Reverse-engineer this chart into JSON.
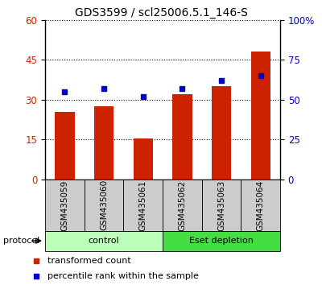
{
  "title": "GDS3599 / scl25006.5.1_146-S",
  "samples": [
    "GSM435059",
    "GSM435060",
    "GSM435061",
    "GSM435062",
    "GSM435063",
    "GSM435064"
  ],
  "red_values": [
    25.5,
    27.5,
    15.5,
    32.0,
    35.0,
    48.0
  ],
  "blue_values": [
    55,
    57,
    52,
    57,
    62,
    65
  ],
  "left_ylim": [
    0,
    60
  ],
  "right_ylim": [
    0,
    100
  ],
  "left_yticks": [
    0,
    15,
    30,
    45,
    60
  ],
  "right_yticks": [
    0,
    25,
    50,
    75,
    100
  ],
  "right_yticklabels": [
    "0",
    "25",
    "50",
    "75",
    "100%"
  ],
  "groups": [
    {
      "label": "control",
      "indices": [
        0,
        1,
        2
      ],
      "color": "#bbffbb"
    },
    {
      "label": "Eset depletion",
      "indices": [
        3,
        4,
        5
      ],
      "color": "#44dd44"
    }
  ],
  "bar_color": "#cc2200",
  "dot_color": "#0000cc",
  "bar_width": 0.5,
  "tick_label_area_color": "#cccccc",
  "protocol_label": "protocol",
  "legend_red": "transformed count",
  "legend_blue": "percentile rank within the sample",
  "title_fontsize": 10,
  "tick_fontsize": 8.5,
  "label_fontsize": 7.5,
  "proto_fontsize": 8,
  "legend_fontsize": 8
}
